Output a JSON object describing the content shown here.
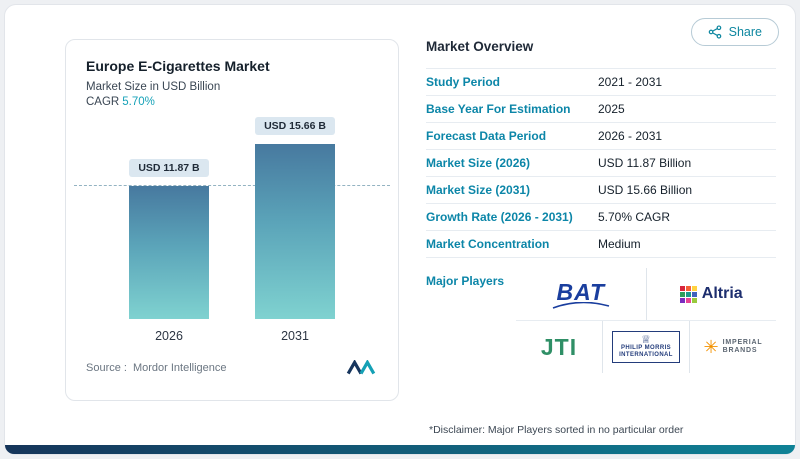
{
  "share": {
    "label": "Share"
  },
  "chart_panel": {
    "title": "Europe E-Cigarettes Market",
    "subtitle": "Market Size in USD Billion",
    "cagr_label": "CAGR",
    "cagr_value": "5.70%",
    "source_prefix": "Source :",
    "source_name": "Mordor Intelligence"
  },
  "chart_data": {
    "type": "bar",
    "title": "Europe E-Cigarettes Market",
    "subtitle": "Market Size in USD Billion",
    "categories": [
      "2026",
      "2031"
    ],
    "values": [
      11.87,
      15.66
    ],
    "bar_labels": [
      "USD 11.87 B",
      "USD 15.66 B"
    ],
    "ylabel": "Market Size in USD Billion",
    "ylim": [
      0,
      16
    ],
    "reference_line": 11.87,
    "grid": false,
    "legend": false,
    "cagr": "5.70%"
  },
  "overview": {
    "heading": "Market Overview",
    "rows": [
      {
        "label": "Study Period",
        "value": "2021 - 2031"
      },
      {
        "label": "Base Year For Estimation",
        "value": "2025"
      },
      {
        "label": "Forecast Data Period",
        "value": "2026 - 2031"
      },
      {
        "label": "Market Size (2026)",
        "value": "USD 11.87 Billion"
      },
      {
        "label": "Market Size (2031)",
        "value": "USD 15.66 Billion"
      },
      {
        "label": "Growth Rate (2026 - 2031)",
        "value": "5.70% CAGR"
      },
      {
        "label": "Market Concentration",
        "value": "Medium"
      }
    ],
    "major_players_label": "Major Players",
    "players": [
      {
        "name": "BAT",
        "text": "BAT"
      },
      {
        "name": "Altria",
        "text": "Altria"
      },
      {
        "name": "JTI",
        "text": "JTI"
      },
      {
        "name": "Philip Morris International",
        "line1": "PHILIP MORRIS",
        "line2": "INTERNATIONAL",
        "crest": "♕"
      },
      {
        "name": "Imperial Brands",
        "line1": "IMPERIAL",
        "line2": "BRANDS",
        "burst": "✳"
      }
    ],
    "disclaimer": "*Disclaimer: Major Players sorted in no particular order"
  },
  "colors": {
    "accent_teal": "#0c86a8",
    "cagr_teal": "#17a2b8",
    "bar_gradient_top": "#47799f",
    "bar_gradient_bottom": "#7fd2d0",
    "bat_navy": "#1a3e9e",
    "jti_green": "#2f8f66",
    "pmi_navy": "#233c7b",
    "imperial_orange": "#f39200",
    "footer_navy": "#15355a",
    "footer_teal": "#0f8296"
  }
}
